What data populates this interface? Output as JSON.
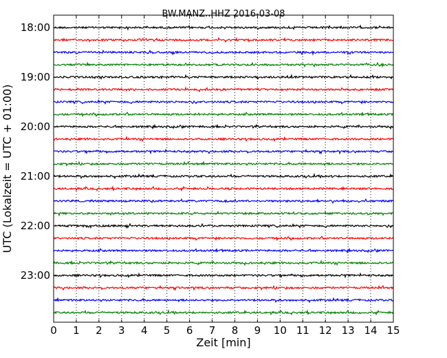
{
  "chart_data": {
    "type": "line",
    "title": "BW.MANZ..HHZ 2016-03-08",
    "xlabel": "Zeit  [min]",
    "ylabel": "UTC (Lokalzeit = UTC + 01:00)",
    "xlim": [
      0,
      15
    ],
    "x_ticks": [
      "0",
      "1",
      "2",
      "3",
      "4",
      "5",
      "6",
      "7",
      "8",
      "9",
      "10",
      "11",
      "12",
      "13",
      "14",
      "15"
    ],
    "y_tick_labels": [
      "18:00",
      "19:00",
      "20:00",
      "21:00",
      "22:00",
      "23:00"
    ],
    "grid": "vertical dotted at each minute",
    "line_color_cycle": [
      "#000000",
      "#ff0000",
      "#0000ff",
      "#008000"
    ],
    "traces": [
      {
        "start": "18:00",
        "color": "#000000"
      },
      {
        "start": "18:15",
        "color": "#ff0000"
      },
      {
        "start": "18:30",
        "color": "#0000ff"
      },
      {
        "start": "18:45",
        "color": "#008000"
      },
      {
        "start": "19:00",
        "color": "#000000"
      },
      {
        "start": "19:15",
        "color": "#ff0000"
      },
      {
        "start": "19:30",
        "color": "#0000ff"
      },
      {
        "start": "19:45",
        "color": "#008000"
      },
      {
        "start": "20:00",
        "color": "#000000"
      },
      {
        "start": "20:15",
        "color": "#ff0000"
      },
      {
        "start": "20:30",
        "color": "#0000ff"
      },
      {
        "start": "20:45",
        "color": "#008000"
      },
      {
        "start": "21:00",
        "color": "#000000"
      },
      {
        "start": "21:15",
        "color": "#ff0000"
      },
      {
        "start": "21:30",
        "color": "#0000ff"
      },
      {
        "start": "21:45",
        "color": "#008000"
      },
      {
        "start": "22:00",
        "color": "#000000"
      },
      {
        "start": "22:15",
        "color": "#ff0000"
      },
      {
        "start": "22:30",
        "color": "#0000ff"
      },
      {
        "start": "22:45",
        "color": "#008000"
      },
      {
        "start": "23:00",
        "color": "#000000"
      },
      {
        "start": "23:15",
        "color": "#ff0000"
      },
      {
        "start": "23:30",
        "color": "#0000ff"
      },
      {
        "start": "23:45",
        "color": "#008000"
      }
    ]
  }
}
